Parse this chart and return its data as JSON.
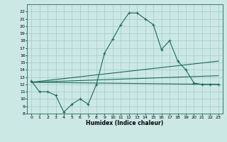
{
  "xlabel": "Humidex (Indice chaleur)",
  "ylabel": "",
  "background_color": "#cce8e5",
  "grid_color": "#aacfcc",
  "line_color": "#1a6b5e",
  "xlim": [
    -0.5,
    23.5
  ],
  "ylim": [
    8,
    23
  ],
  "xticks": [
    0,
    1,
    2,
    3,
    4,
    5,
    6,
    7,
    8,
    9,
    10,
    11,
    12,
    13,
    14,
    15,
    16,
    17,
    18,
    19,
    20,
    21,
    22,
    23
  ],
  "yticks": [
    8,
    9,
    10,
    11,
    12,
    13,
    14,
    15,
    16,
    17,
    18,
    19,
    20,
    21,
    22
  ],
  "series": [
    {
      "x": [
        0,
        1,
        2,
        3,
        4,
        5,
        6,
        7,
        8,
        9,
        10,
        11,
        12,
        13,
        14,
        15,
        16,
        17,
        18,
        19,
        20,
        21,
        22,
        23
      ],
      "y": [
        12.5,
        11.0,
        11.0,
        10.5,
        8.2,
        9.3,
        10.0,
        9.3,
        12.0,
        16.3,
        18.2,
        20.2,
        21.8,
        21.8,
        21.0,
        20.2,
        16.8,
        18.0,
        15.2,
        14.0,
        12.2,
        12.0,
        12.0,
        12.0
      ],
      "markers": true
    },
    {
      "x": [
        0,
        23
      ],
      "y": [
        12.3,
        12.0
      ],
      "markers": false
    },
    {
      "x": [
        0,
        23
      ],
      "y": [
        12.3,
        13.2
      ],
      "markers": false
    },
    {
      "x": [
        0,
        23
      ],
      "y": [
        12.3,
        15.2
      ],
      "markers": false
    }
  ]
}
